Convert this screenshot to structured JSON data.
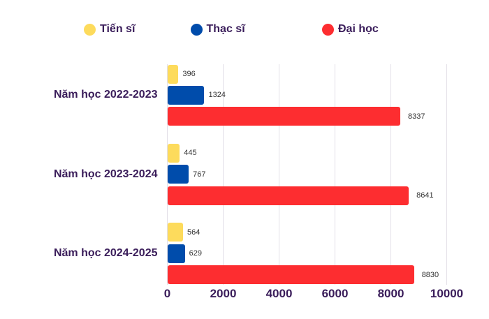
{
  "chart_data": {
    "type": "bar",
    "orientation": "horizontal",
    "categories": [
      "Năm học 2022-2023",
      "Năm học 2023-2024",
      "Năm học 2024-2025"
    ],
    "series": [
      {
        "name": "Tiến sĩ",
        "color": "#FDDB5C",
        "values": [
          396,
          445,
          564
        ]
      },
      {
        "name": "Thạc sĩ",
        "color": "#004CAB",
        "values": [
          1324,
          767,
          629
        ]
      },
      {
        "name": "Đại học",
        "color": "#FD2D30",
        "values": [
          8337,
          8641,
          8830
        ]
      }
    ],
    "x_ticks": [
      0,
      2000,
      4000,
      6000,
      8000,
      10000
    ],
    "xlim": [
      0,
      10000
    ],
    "grid": true,
    "legend_position": "top"
  },
  "style": {
    "axis_text_color": "#3a1d5a",
    "value_label_color": "#333333",
    "gridline_color": "#e2dfe7",
    "background_color": "#ffffff"
  }
}
